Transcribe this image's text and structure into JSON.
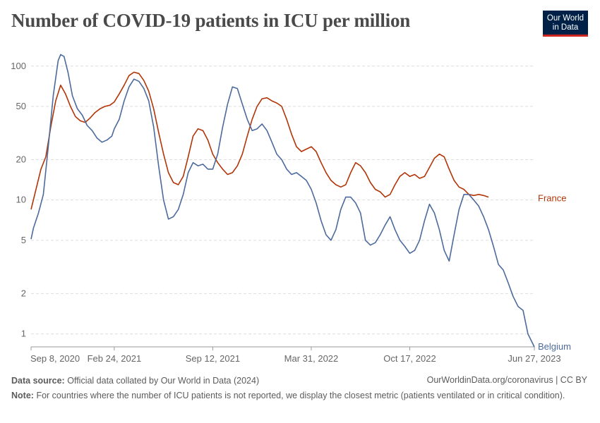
{
  "header": {
    "title": "Number of COVID-19 patients in ICU per million",
    "logo_line1": "Our World",
    "logo_line2": "in Data"
  },
  "footer": {
    "source_label": "Data source:",
    "source_text": "Official data collated by Our World in Data (2024)",
    "url_text": "OurWorldinData.org/coronavirus | CC BY",
    "note_label": "Note:",
    "note_text": "For countries where the number of ICU patients is not reported, we display the closest metric (patients ventilated or in critical condition)."
  },
  "colors": {
    "france": "#b13507",
    "belgium": "#4c6a9c",
    "grid": "#dddddd",
    "axis": "#999999"
  },
  "chart_data": {
    "type": "line",
    "title": "Number of COVID-19 patients in ICU per million",
    "y_scale": "log",
    "ylim": [
      0.8,
      140
    ],
    "y_ticks": [
      1,
      2,
      5,
      10,
      20,
      50,
      100
    ],
    "xlim": [
      "2020-09-08",
      "2023-06-27"
    ],
    "x_tick_labels": [
      "Sep 8, 2020",
      "Feb 24, 2021",
      "Sep 12, 2021",
      "Mar 31, 2022",
      "Oct 17, 2022",
      "Jun 27, 2023"
    ],
    "x_tick_dates": [
      "2020-09-08",
      "2021-02-24",
      "2021-09-12",
      "2022-03-31",
      "2022-10-17",
      "2023-06-27"
    ],
    "grid": true,
    "series": [
      {
        "name": "France",
        "points": [
          [
            "2020-09-08",
            8.5
          ],
          [
            "2020-09-18",
            12
          ],
          [
            "2020-09-28",
            17
          ],
          [
            "2020-10-08",
            21
          ],
          [
            "2020-10-18",
            35
          ],
          [
            "2020-10-28",
            55
          ],
          [
            "2020-11-07",
            72
          ],
          [
            "2020-11-17",
            62
          ],
          [
            "2020-11-27",
            50
          ],
          [
            "2020-12-07",
            42
          ],
          [
            "2020-12-17",
            39
          ],
          [
            "2020-12-27",
            38
          ],
          [
            "2021-01-06",
            41
          ],
          [
            "2021-01-16",
            45
          ],
          [
            "2021-01-26",
            48
          ],
          [
            "2021-02-05",
            50
          ],
          [
            "2021-02-15",
            51
          ],
          [
            "2021-02-24",
            54
          ],
          [
            "2021-03-06",
            62
          ],
          [
            "2021-03-16",
            72
          ],
          [
            "2021-03-26",
            85
          ],
          [
            "2021-04-05",
            90
          ],
          [
            "2021-04-15",
            88
          ],
          [
            "2021-04-25",
            78
          ],
          [
            "2021-05-05",
            65
          ],
          [
            "2021-05-15",
            48
          ],
          [
            "2021-05-25",
            32
          ],
          [
            "2021-06-04",
            22
          ],
          [
            "2021-06-14",
            16
          ],
          [
            "2021-06-24",
            13.5
          ],
          [
            "2021-07-04",
            13
          ],
          [
            "2021-07-14",
            15
          ],
          [
            "2021-07-24",
            21
          ],
          [
            "2021-08-03",
            30
          ],
          [
            "2021-08-13",
            34
          ],
          [
            "2021-08-23",
            33
          ],
          [
            "2021-09-02",
            28
          ],
          [
            "2021-09-12",
            22
          ],
          [
            "2021-09-22",
            19
          ],
          [
            "2021-10-02",
            17
          ],
          [
            "2021-10-12",
            15.5
          ],
          [
            "2021-10-22",
            16
          ],
          [
            "2021-11-01",
            18
          ],
          [
            "2021-11-11",
            22
          ],
          [
            "2021-11-21",
            30
          ],
          [
            "2021-12-01",
            40
          ],
          [
            "2021-12-11",
            50
          ],
          [
            "2021-12-21",
            57
          ],
          [
            "2021-12-31",
            58
          ],
          [
            "2022-01-10",
            55
          ],
          [
            "2022-01-20",
            53
          ],
          [
            "2022-01-30",
            50
          ],
          [
            "2022-02-09",
            40
          ],
          [
            "2022-02-19",
            31
          ],
          [
            "2022-03-01",
            25
          ],
          [
            "2022-03-11",
            23
          ],
          [
            "2022-03-21",
            24
          ],
          [
            "2022-03-31",
            25
          ],
          [
            "2022-04-10",
            23
          ],
          [
            "2022-04-20",
            19
          ],
          [
            "2022-04-30",
            16
          ],
          [
            "2022-05-10",
            14
          ],
          [
            "2022-05-20",
            13
          ],
          [
            "2022-05-30",
            12.5
          ],
          [
            "2022-06-09",
            13
          ],
          [
            "2022-06-19",
            16
          ],
          [
            "2022-06-29",
            19
          ],
          [
            "2022-07-09",
            18
          ],
          [
            "2022-07-19",
            16
          ],
          [
            "2022-07-29",
            13.5
          ],
          [
            "2022-08-08",
            12
          ],
          [
            "2022-08-18",
            11.5
          ],
          [
            "2022-08-28",
            10.5
          ],
          [
            "2022-09-07",
            11
          ],
          [
            "2022-09-17",
            13
          ],
          [
            "2022-09-27",
            15
          ],
          [
            "2022-10-07",
            16
          ],
          [
            "2022-10-17",
            15
          ],
          [
            "2022-10-27",
            15.5
          ],
          [
            "2022-11-06",
            14.5
          ],
          [
            "2022-11-16",
            15
          ],
          [
            "2022-11-26",
            17.5
          ],
          [
            "2022-12-06",
            20.5
          ],
          [
            "2022-12-16",
            22
          ],
          [
            "2022-12-26",
            21
          ],
          [
            "2023-01-05",
            17
          ],
          [
            "2023-01-15",
            14
          ],
          [
            "2023-01-25",
            12.5
          ],
          [
            "2023-02-04",
            12
          ],
          [
            "2023-02-14",
            11
          ],
          [
            "2023-02-24",
            10.8
          ],
          [
            "2023-03-06",
            11
          ],
          [
            "2023-03-16",
            10.8
          ],
          [
            "2023-03-26",
            10.5
          ]
        ]
      },
      {
        "name": "Belgium",
        "points": [
          [
            "2020-09-08",
            5.1
          ],
          [
            "2020-09-13",
            6.2
          ],
          [
            "2020-09-23",
            8
          ],
          [
            "2020-10-03",
            11
          ],
          [
            "2020-10-13",
            25
          ],
          [
            "2020-10-23",
            60
          ],
          [
            "2020-11-02",
            110
          ],
          [
            "2020-11-07",
            122
          ],
          [
            "2020-11-14",
            118
          ],
          [
            "2020-11-22",
            90
          ],
          [
            "2020-12-01",
            60
          ],
          [
            "2020-12-11",
            48
          ],
          [
            "2020-12-21",
            43
          ],
          [
            "2020-12-31",
            36
          ],
          [
            "2021-01-10",
            33
          ],
          [
            "2021-01-20",
            29
          ],
          [
            "2021-01-30",
            27
          ],
          [
            "2021-02-09",
            28
          ],
          [
            "2021-02-19",
            30
          ],
          [
            "2021-02-24",
            34
          ],
          [
            "2021-03-06",
            40
          ],
          [
            "2021-03-16",
            55
          ],
          [
            "2021-03-26",
            70
          ],
          [
            "2021-04-05",
            80
          ],
          [
            "2021-04-15",
            77
          ],
          [
            "2021-04-25",
            68
          ],
          [
            "2021-05-05",
            55
          ],
          [
            "2021-05-15",
            35
          ],
          [
            "2021-05-25",
            18
          ],
          [
            "2021-06-04",
            10
          ],
          [
            "2021-06-14",
            7.2
          ],
          [
            "2021-06-24",
            7.5
          ],
          [
            "2021-07-04",
            8.5
          ],
          [
            "2021-07-14",
            11
          ],
          [
            "2021-07-24",
            16
          ],
          [
            "2021-08-03",
            19
          ],
          [
            "2021-08-13",
            18
          ],
          [
            "2021-08-23",
            18.5
          ],
          [
            "2021-09-02",
            17
          ],
          [
            "2021-09-12",
            17
          ],
          [
            "2021-09-22",
            22
          ],
          [
            "2021-10-02",
            35
          ],
          [
            "2021-10-12",
            52
          ],
          [
            "2021-10-22",
            70
          ],
          [
            "2021-11-01",
            68
          ],
          [
            "2021-11-11",
            52
          ],
          [
            "2021-11-21",
            40
          ],
          [
            "2021-12-01",
            33
          ],
          [
            "2021-12-11",
            34
          ],
          [
            "2021-12-21",
            37
          ],
          [
            "2021-12-31",
            33
          ],
          [
            "2022-01-10",
            27
          ],
          [
            "2022-01-20",
            22
          ],
          [
            "2022-01-30",
            20
          ],
          [
            "2022-02-09",
            17
          ],
          [
            "2022-02-19",
            15.5
          ],
          [
            "2022-03-01",
            16
          ],
          [
            "2022-03-11",
            15
          ],
          [
            "2022-03-21",
            14
          ],
          [
            "2022-03-31",
            12
          ],
          [
            "2022-04-10",
            9.5
          ],
          [
            "2022-04-20",
            7
          ],
          [
            "2022-04-30",
            5.5
          ],
          [
            "2022-05-10",
            5
          ],
          [
            "2022-05-20",
            6
          ],
          [
            "2022-05-30",
            8.5
          ],
          [
            "2022-06-09",
            10.5
          ],
          [
            "2022-06-19",
            10.5
          ],
          [
            "2022-06-29",
            9.5
          ],
          [
            "2022-07-09",
            8
          ],
          [
            "2022-07-19",
            5
          ],
          [
            "2022-07-29",
            4.6
          ],
          [
            "2022-08-08",
            4.8
          ],
          [
            "2022-08-18",
            5.5
          ],
          [
            "2022-08-28",
            6.5
          ],
          [
            "2022-09-07",
            7.5
          ],
          [
            "2022-09-17",
            6
          ],
          [
            "2022-09-27",
            5
          ],
          [
            "2022-10-07",
            4.5
          ],
          [
            "2022-10-17",
            4
          ],
          [
            "2022-10-27",
            4.2
          ],
          [
            "2022-11-06",
            5
          ],
          [
            "2022-11-16",
            7
          ],
          [
            "2022-11-26",
            9.3
          ],
          [
            "2022-12-06",
            8
          ],
          [
            "2022-12-16",
            6
          ],
          [
            "2022-12-26",
            4.2
          ],
          [
            "2023-01-05",
            3.5
          ],
          [
            "2023-01-15",
            5.5
          ],
          [
            "2023-01-25",
            8.5
          ],
          [
            "2023-02-04",
            11
          ],
          [
            "2023-02-14",
            11
          ],
          [
            "2023-02-24",
            10
          ],
          [
            "2023-03-06",
            9
          ],
          [
            "2023-03-16",
            7.5
          ],
          [
            "2023-03-26",
            6
          ],
          [
            "2023-04-05",
            4.5
          ],
          [
            "2023-04-15",
            3.3
          ],
          [
            "2023-04-25",
            3
          ],
          [
            "2023-05-05",
            2.4
          ],
          [
            "2023-05-15",
            1.9
          ],
          [
            "2023-05-25",
            1.6
          ],
          [
            "2023-06-04",
            1.5
          ],
          [
            "2023-06-14",
            1.0
          ],
          [
            "2023-06-27",
            0.8
          ]
        ]
      }
    ]
  }
}
